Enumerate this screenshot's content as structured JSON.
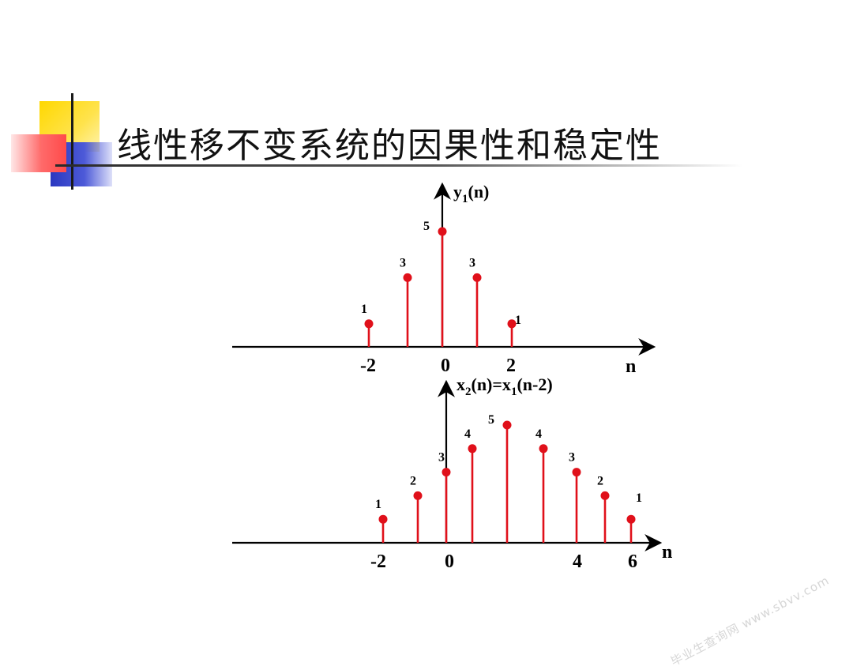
{
  "slide": {
    "title": "线性移不变系统的因果性和稳定性",
    "watermark": "毕业生查询网 www.sbvv.com",
    "colors": {
      "stem": "#e0101a",
      "axis": "#000000",
      "yellow": "#ffd800",
      "blue": "#3040c8",
      "red": "#ff5050"
    }
  },
  "chart_data": [
    {
      "type": "stem",
      "ylabel": "y1(n)",
      "ylabel_parts": {
        "base": "y",
        "sub": "1",
        "rest": "(n)"
      },
      "xlabel": "n",
      "x": [
        -2,
        -1,
        0,
        1,
        2
      ],
      "values": [
        1,
        3,
        5,
        3,
        1
      ],
      "value_labels": [
        "1",
        "3",
        "5",
        "3",
        "1"
      ],
      "tick_labels": [
        "-2",
        "0",
        "2"
      ]
    },
    {
      "type": "stem",
      "ylabel": "x2(n)=x1(n-2)",
      "ylabel_parts": {
        "a": "x",
        "a_sub": "2",
        "b": "(n)=x",
        "b_sub": "1",
        "c": "(n-2)"
      },
      "xlabel": "n",
      "x": [
        -2,
        -1,
        0,
        1,
        2,
        3,
        4,
        5,
        6
      ],
      "values": [
        1,
        2,
        3,
        4,
        5,
        4,
        3,
        2,
        1
      ],
      "value_labels": [
        "1",
        "2",
        "3",
        "4",
        "5",
        "4",
        "3",
        "2",
        "1"
      ],
      "tick_labels": [
        "-2",
        "0",
        "4",
        "6"
      ]
    }
  ]
}
